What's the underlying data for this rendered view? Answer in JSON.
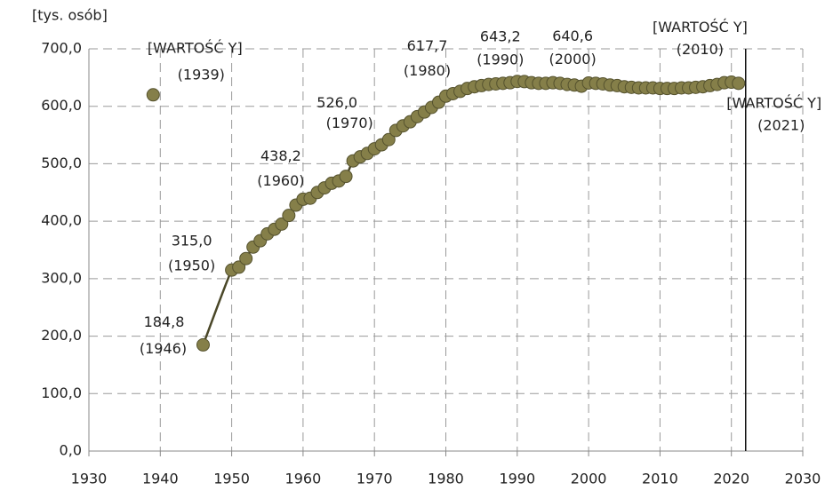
{
  "chart_data": {
    "type": "scatter",
    "y_label": "[tys. osób]",
    "xlim": [
      1930,
      2030
    ],
    "xticks": [
      1930,
      1940,
      1950,
      1960,
      1970,
      1980,
      1990,
      2000,
      2010,
      2020,
      2030
    ],
    "ylim": [
      0,
      700
    ],
    "yticks": [
      {
        "value": 0,
        "label": "0,0"
      },
      {
        "value": 100,
        "label": "100,0"
      },
      {
        "value": 200,
        "label": "200,0"
      },
      {
        "value": 300,
        "label": "300,0"
      },
      {
        "value": 400,
        "label": "400,0"
      },
      {
        "value": 500,
        "label": "500,0"
      },
      {
        "value": 600,
        "label": "600,0"
      },
      {
        "value": 700,
        "label": "700,0"
      }
    ],
    "grid": true,
    "reference_line_x": 2022,
    "marker_color": "#857f49",
    "line_color": "#4a4728",
    "series": [
      {
        "line": false,
        "x": [
          1939
        ],
        "values": [
          620
        ],
        "value_labels": [
          [
            "[WARTOŚĆ Y]",
            "(1939)"
          ]
        ]
      },
      {
        "line": true,
        "x": [
          1946,
          1950,
          1951,
          1952,
          1953,
          1954,
          1955,
          1956,
          1957,
          1958,
          1959,
          1960,
          1961,
          1962,
          1963,
          1964,
          1965,
          1966,
          1967,
          1968,
          1969,
          1970,
          1971,
          1972,
          1973,
          1974,
          1975,
          1976,
          1977,
          1978,
          1979,
          1980,
          1981,
          1982,
          1983,
          1984,
          1985,
          1986,
          1987,
          1988,
          1989,
          1990,
          1991,
          1992,
          1993,
          1994,
          1995,
          1996,
          1997,
          1998,
          1999,
          2000,
          2001,
          2002,
          2003,
          2004,
          2005,
          2006,
          2007,
          2008,
          2009,
          2010,
          2011,
          2012,
          2013,
          2014,
          2015,
          2016,
          2017,
          2018,
          2019,
          2020,
          2021
        ],
        "values": [
          184.8,
          315.0,
          320,
          335,
          355,
          366,
          378,
          386,
          395,
          410,
          428,
          438.2,
          440,
          450,
          458,
          466,
          470,
          478,
          505,
          512,
          518,
          526.0,
          533,
          542,
          558,
          566,
          573,
          582,
          590,
          598,
          607,
          617.7,
          622,
          626,
          631,
          634,
          636,
          638,
          639,
          640,
          641,
          643.2,
          643,
          641,
          640,
          640,
          641,
          640,
          638,
          637,
          635,
          640.6,
          640,
          639,
          637,
          636,
          634,
          633,
          632,
          632,
          632,
          631,
          631,
          631,
          632,
          632,
          633,
          634,
          636,
          638,
          641,
          642,
          640
        ],
        "value_labels": [
          [
            "184,8",
            "(1946)"
          ],
          [
            "315,0",
            "(1950)"
          ],
          null,
          null,
          null,
          null,
          null,
          null,
          null,
          null,
          null,
          [
            "438,2",
            "(1960)"
          ],
          null,
          null,
          null,
          null,
          null,
          null,
          null,
          null,
          null,
          [
            "526,0",
            "(1970)"
          ],
          null,
          null,
          null,
          null,
          null,
          null,
          null,
          null,
          null,
          [
            "617,7",
            "(1980)"
          ],
          null,
          null,
          null,
          null,
          null,
          null,
          null,
          null,
          null,
          [
            "643,2",
            "(1990)"
          ],
          null,
          null,
          null,
          null,
          null,
          null,
          null,
          null,
          null,
          [
            "640,6",
            "(2000)"
          ],
          null,
          null,
          null,
          null,
          null,
          null,
          null,
          null,
          null,
          [
            "[WARTOŚĆ Y]",
            "(2010)"
          ],
          null,
          null,
          null,
          null,
          null,
          null,
          null,
          null,
          null,
          null,
          [
            "[WARTOŚĆ Y]",
            "(2021)"
          ]
        ]
      }
    ]
  }
}
